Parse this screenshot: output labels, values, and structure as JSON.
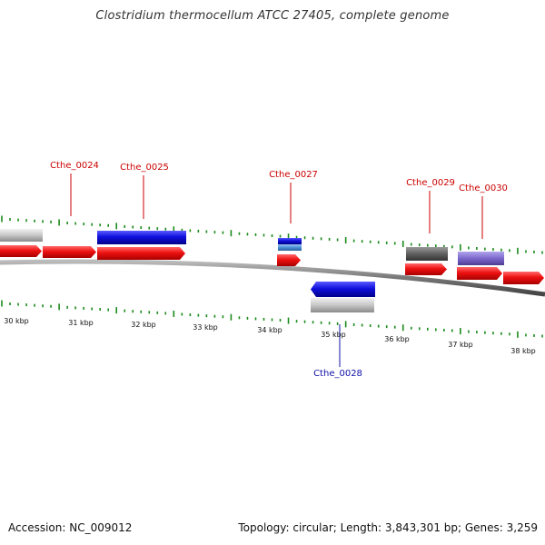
{
  "header": {
    "title": "Clostridium thermocellum ATCC 27405, complete genome"
  },
  "footer": {
    "accession": "Accession: NC_009012",
    "summary": "Topology: circular; Length: 3,843,301 bp; Genes: 3,259"
  },
  "colors": {
    "gene_red": "#ee1111",
    "gene_blue": "#1010dd",
    "gene_light_blue": "#4a8fd6",
    "gene_gray": "#c0c0c0",
    "gene_dark_gray": "#606060",
    "gene_purple": "#7b68cc",
    "tick_green": "#1a8a1a",
    "backbone": "#777777",
    "label_red": "#cc0000",
    "label_blue": "#1010aa"
  },
  "scale_labels": [
    "30 kbp",
    "31 kbp",
    "32 kbp",
    "33 kbp",
    "34 kbp",
    "35 kbp",
    "36 kbp",
    "37 kbp",
    "38 kbp"
  ],
  "gene_labels": [
    {
      "text": "Cthe_0024",
      "color": "red"
    },
    {
      "text": "Cthe_0025",
      "color": "red"
    },
    {
      "text": "Cthe_0027",
      "color": "red"
    },
    {
      "text": "Cthe_0029",
      "color": "red"
    },
    {
      "text": "Cthe_0030",
      "color": "red"
    },
    {
      "text": "Cthe_0028",
      "color": "blue"
    }
  ]
}
